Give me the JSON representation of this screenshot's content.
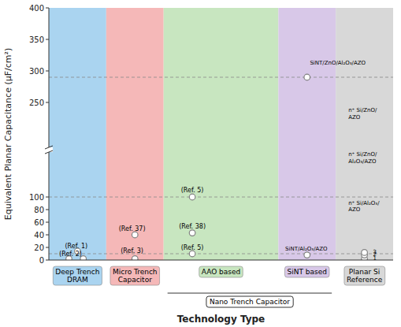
{
  "chart_data": {
    "type": "scatter",
    "xlabel": "Technology Type",
    "ylabel": "Equivalent Planar Capacitance (μF/cm²)",
    "xlim": [
      0.5,
      6.5
    ],
    "ylim": [
      0,
      400
    ],
    "yticks": [
      0,
      20,
      40,
      60,
      80,
      100,
      250,
      300,
      350,
      400
    ],
    "tick_labels": "y",
    "marker": "circle",
    "color": "gray",
    "x": [
      0.85,
      1.1,
      1.0,
      2.0,
      2.0,
      3.0,
      3.0,
      3.0,
      5.0,
      5.0,
      6.0,
      6.0,
      6.0
    ],
    "values": [
      2,
      2,
      14,
      2,
      40,
      10,
      43,
      100,
      8,
      290,
      2,
      8,
      12
    ],
    "reference_lines": [
      10,
      100,
      290
    ],
    "axis_break": 175,
    "regions": [
      {
        "name": "Deep Trench\nDRAM",
        "color": "#aad4f0",
        "xmin": 0.5,
        "xmax": 1.5
      },
      {
        "name": "Micro Trench\nCapacitor",
        "color": "#f5b8b8",
        "xmin": 1.5,
        "xmax": 2.5
      },
      {
        "name": "AAO based",
        "color": "#c8e6c0",
        "xmin": 2.5,
        "xmax": 4.5
      },
      {
        "name": "SiNT based",
        "color": "#d8c8e8",
        "xmin": 4.5,
        "xmax": 5.5
      },
      {
        "name": "Planar Si\nReference",
        "color": "#d8d8d8",
        "xmin": 5.5,
        "xmax": 6.5
      }
    ],
    "groups": [
      {
        "name": "Nano Trench Capacitor",
        "xmin": 2.5,
        "xmax": 5.5
      }
    ],
    "ref_labels": [
      {
        "text": "(Ref. 1)",
        "x": 0.78,
        "y": 16,
        "align": "left"
      },
      {
        "text": "(Ref. 2)",
        "x": 0.68,
        "y": 4,
        "align": "left"
      },
      {
        "text": "(Ref. 3)",
        "x": 1.95,
        "y": 9,
        "align": "center"
      },
      {
        "text": "(Ref. 37)",
        "x": 1.95,
        "y": 44,
        "align": "center"
      },
      {
        "text": "(Ref. 5)",
        "x": 3.0,
        "y": 14,
        "align": "center"
      },
      {
        "text": "(Ref. 38)",
        "x": 3.0,
        "y": 48,
        "align": "center"
      },
      {
        "text": "(Ref. 5)",
        "x": 3.0,
        "y": 105,
        "align": "center"
      }
    ],
    "number_labels": [
      {
        "text": "1",
        "x": 6.15,
        "y": 3
      },
      {
        "text": "2",
        "x": 6.15,
        "y": 9
      },
      {
        "text": "3",
        "x": 6.15,
        "y": 13
      }
    ],
    "labels": [
      {
        "text": "SiNT/ZnO/Al₂O₃/AZO",
        "x": 5.05,
        "y": 310
      },
      {
        "text": "SiNT/Al₂O₃/AZO",
        "x": 4.62,
        "y": 15
      },
      {
        "text": "n⁺ Si/ZnO/\nAZO",
        "x": 5.72,
        "y": 235
      },
      {
        "text": "n⁺ Si/ZnO/\nAl₂O₃/AZO",
        "x": 5.72,
        "y": 165
      },
      {
        "text": "n⁺ Si/Al₂O₃/\nAZO",
        "x": 5.72,
        "y": 88
      }
    ]
  }
}
